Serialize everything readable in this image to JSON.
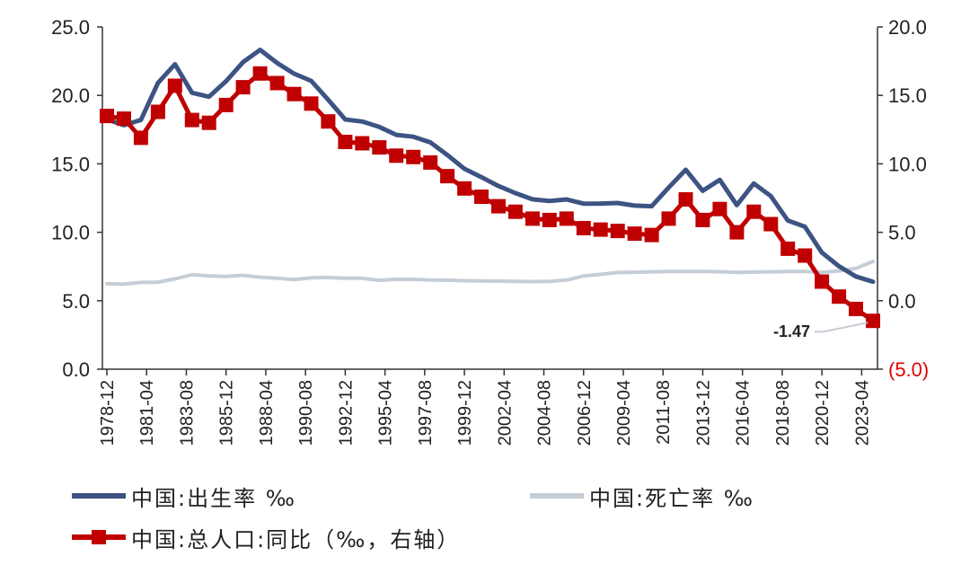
{
  "chart_data": {
    "type": "line",
    "x": [
      "1978-12",
      "1979-12",
      "1980-12",
      "1981-12",
      "1982-12",
      "1983-12",
      "1984-12",
      "1985-12",
      "1986-12",
      "1987-12",
      "1988-12",
      "1989-12",
      "1990-12",
      "1991-12",
      "1992-12",
      "1993-12",
      "1994-12",
      "1995-12",
      "1996-12",
      "1997-12",
      "1998-12",
      "1999-12",
      "2000-12",
      "2001-12",
      "2002-12",
      "2003-12",
      "2004-12",
      "2005-12",
      "2006-12",
      "2007-12",
      "2008-12",
      "2009-12",
      "2010-12",
      "2011-12",
      "2012-12",
      "2013-12",
      "2014-12",
      "2015-12",
      "2016-12",
      "2017-12",
      "2018-12",
      "2019-12",
      "2020-12",
      "2021-12",
      "2022-12",
      "2023-12"
    ],
    "xtick_labels": [
      "1978-12",
      "1981-04",
      "1983-08",
      "1985-12",
      "1988-04",
      "1990-08",
      "1992-12",
      "1995-04",
      "1997-08",
      "1999-12",
      "2002-04",
      "2004-08",
      "2006-12",
      "2009-04",
      "2011-08",
      "2013-12",
      "2016-04",
      "2018-08",
      "2020-12",
      "2023-04"
    ],
    "series": [
      {
        "name": "中国:出生率 ‰",
        "axis": "left",
        "color": "#3d5383",
        "values": [
          18.25,
          17.82,
          18.21,
          20.91,
          22.28,
          20.19,
          19.9,
          21.04,
          22.43,
          23.33,
          22.37,
          21.58,
          21.06,
          19.68,
          18.24,
          18.09,
          17.7,
          17.12,
          16.98,
          16.57,
          15.64,
          14.64,
          14.03,
          13.38,
          12.86,
          12.41,
          12.29,
          12.4,
          12.09,
          12.1,
          12.14,
          11.95,
          11.9,
          13.27,
          14.57,
          13.03,
          13.83,
          11.99,
          13.57,
          12.64,
          10.86,
          10.41,
          8.52,
          7.52,
          6.77,
          6.39
        ]
      },
      {
        "name": "中国:死亡率 ‰",
        "axis": "left",
        "color": "#c5cdd6",
        "values": [
          6.25,
          6.21,
          6.34,
          6.36,
          6.6,
          6.9,
          6.82,
          6.78,
          6.86,
          6.72,
          6.64,
          6.54,
          6.67,
          6.7,
          6.64,
          6.64,
          6.49,
          6.57,
          6.56,
          6.51,
          6.5,
          6.46,
          6.45,
          6.43,
          6.41,
          6.4,
          6.42,
          6.51,
          6.81,
          6.93,
          7.06,
          7.08,
          7.11,
          7.14,
          7.13,
          7.13,
          7.12,
          7.07,
          7.09,
          7.11,
          7.13,
          7.14,
          7.07,
          7.18,
          7.37,
          7.87
        ]
      },
      {
        "name": "中国:总人口:同比（‰，右轴）",
        "axis": "right",
        "color": "#c00000",
        "marker": "square",
        "values": [
          13.5,
          13.3,
          11.9,
          13.8,
          15.7,
          13.2,
          13.0,
          14.3,
          15.6,
          16.6,
          15.9,
          15.1,
          14.4,
          13.1,
          11.6,
          11.5,
          11.2,
          10.6,
          10.5,
          10.1,
          9.1,
          8.2,
          7.6,
          6.9,
          6.5,
          6.0,
          5.9,
          6.0,
          5.3,
          5.2,
          5.1,
          4.9,
          4.8,
          6.0,
          7.4,
          5.9,
          6.7,
          5.0,
          6.5,
          5.6,
          3.8,
          3.3,
          1.4,
          0.3,
          -0.6,
          -1.47
        ]
      }
    ],
    "left_axis": {
      "min": 0.0,
      "max": 25.0,
      "ticks": [
        "0.0",
        "5.0",
        "10.0",
        "15.0",
        "20.0",
        "25.0"
      ]
    },
    "right_axis": {
      "min": -5.0,
      "max": 20.0,
      "ticks": [
        "(5.0)",
        "0.0",
        "5.0",
        "10.0",
        "15.0",
        "20.0"
      ]
    },
    "annotation": {
      "text": "-1.47",
      "series_index": 2,
      "point_index": 45
    },
    "grid": false,
    "legend_position": "bottom"
  },
  "legend": {
    "birth_rate": "中国:出生率 ‰",
    "death_rate": "中国:死亡率 ‰",
    "population_yoy": "中国:总人口:同比（‰，右轴）"
  }
}
